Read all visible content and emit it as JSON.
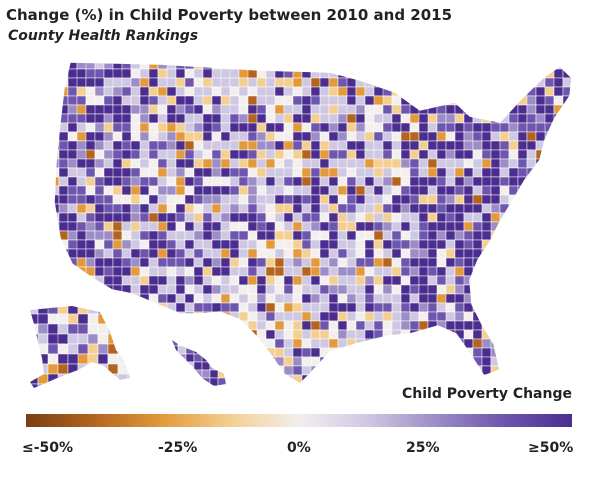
{
  "header": {
    "title": "Change (%) in Child Poverty between 2010 and 2015",
    "subtitle": "County Health Rankings"
  },
  "legend": {
    "title": "Child Poverty Change",
    "ticks": [
      "≤-50%",
      "-25%",
      "0%",
      "25%",
      "≥50%"
    ],
    "colors": [
      "#7a3e12",
      "#b4641f",
      "#e29a3c",
      "#f4cf92",
      "#f2efee",
      "#cfc8e3",
      "#9d8dc6",
      "#6e55ad",
      "#4b2d8f"
    ]
  },
  "map": {
    "regions": [
      "contiguous-us",
      "alaska",
      "hawaii"
    ]
  }
}
